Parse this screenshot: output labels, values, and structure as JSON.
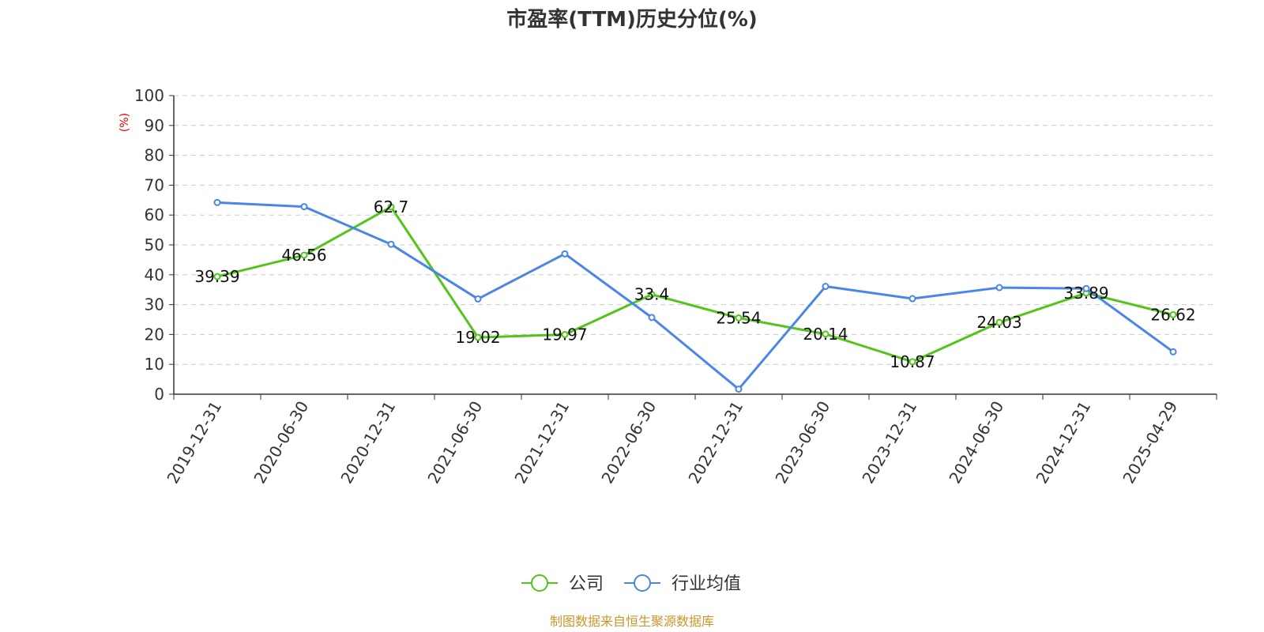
{
  "chart_data": {
    "type": "line",
    "title": "市盈率(TTM)历史分位(%)",
    "ylabel": "(%)",
    "xlabel": "",
    "ylim": [
      0,
      100
    ],
    "yticks": [
      0,
      10,
      20,
      30,
      40,
      50,
      60,
      70,
      80,
      90,
      100
    ],
    "grid": "horizontal-dashed",
    "legend_position": "bottom",
    "categories": [
      "2019-12-31",
      "2020-06-30",
      "2020-12-31",
      "2021-06-30",
      "2021-12-31",
      "2022-06-30",
      "2022-12-31",
      "2023-06-30",
      "2023-12-31",
      "2024-06-30",
      "2024-12-31",
      "2025-04-29"
    ],
    "series": [
      {
        "name": "公司",
        "color": "#52c41a",
        "values": [
          39.39,
          46.56,
          62.7,
          19.02,
          19.97,
          33.4,
          25.54,
          20.14,
          10.87,
          24.03,
          33.89,
          26.62
        ],
        "labels": [
          "39.39",
          "46.56",
          "62.7",
          "19.02",
          "19.97",
          "33.4",
          "25.54",
          "20.14",
          "10.87",
          "24.03",
          "33.89",
          "26.62"
        ]
      },
      {
        "name": "行业均值",
        "color": "#4a86e8",
        "values": [
          64.2,
          62.8,
          50.2,
          31.9,
          47.0,
          25.7,
          1.7,
          36.1,
          32.0,
          35.7,
          35.4,
          14.2
        ]
      }
    ]
  },
  "source_text": "制图数据来自恒生聚源数据库",
  "colors": {
    "unit_label": "#e00000",
    "source_text": "#c8962e",
    "axis": "#333333",
    "grid": "#cccccc"
  }
}
